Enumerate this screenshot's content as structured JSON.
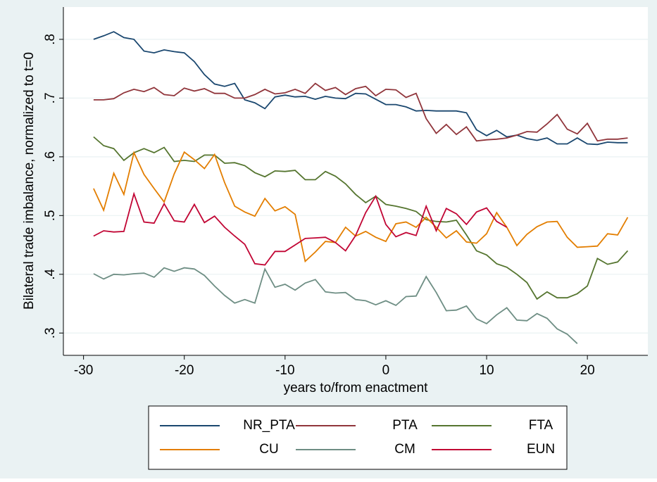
{
  "chart_data": {
    "type": "line",
    "y_label": "Bilateral trade imbalance, normalized to t=0",
    "x_label": "years to/from enactment",
    "x": [
      -29,
      -28,
      -27,
      -26,
      -25,
      -24,
      -23,
      -22,
      -21,
      -20,
      -19,
      -18,
      -17,
      -16,
      -15,
      -14,
      -13,
      -12,
      -11,
      -10,
      -9,
      -8,
      -7,
      -6,
      -5,
      -4,
      -3,
      -2,
      -1,
      0,
      1,
      2,
      3,
      4,
      5,
      6,
      7,
      8,
      9,
      10,
      11,
      12,
      13,
      14,
      15,
      16,
      17,
      18,
      19,
      20,
      21,
      22,
      23,
      24
    ],
    "series": [
      {
        "name": "NR_PTA",
        "color": "#1a476f",
        "values": [
          0.8,
          0.806,
          0.813,
          0.803,
          0.8,
          0.78,
          0.777,
          0.782,
          0.779,
          0.777,
          0.762,
          0.74,
          0.724,
          0.72,
          0.725,
          0.697,
          0.692,
          0.682,
          0.702,
          0.705,
          0.702,
          0.703,
          0.698,
          0.703,
          0.7,
          0.699,
          0.708,
          0.707,
          0.698,
          0.689,
          0.689,
          0.685,
          0.678,
          0.679,
          0.678,
          0.678,
          0.678,
          0.675,
          0.646,
          0.636,
          0.645,
          0.634,
          0.637,
          0.631,
          0.628,
          0.632,
          0.622,
          0.622,
          0.632,
          0.622,
          0.621,
          0.625,
          0.624,
          0.624
        ]
      },
      {
        "name": "PTA",
        "color": "#90353b",
        "values": [
          0.697,
          0.697,
          0.699,
          0.709,
          0.715,
          0.711,
          0.718,
          0.706,
          0.704,
          0.717,
          0.712,
          0.716,
          0.708,
          0.708,
          0.7,
          0.7,
          0.706,
          0.715,
          0.707,
          0.709,
          0.715,
          0.708,
          0.725,
          0.713,
          0.718,
          0.706,
          0.716,
          0.72,
          0.704,
          0.715,
          0.714,
          0.701,
          0.708,
          0.665,
          0.64,
          0.655,
          0.638,
          0.651,
          0.627,
          0.629,
          0.63,
          0.632,
          0.637,
          0.643,
          0.642,
          0.656,
          0.672,
          0.647,
          0.639,
          0.657,
          0.627,
          0.63,
          0.63,
          0.632
        ]
      },
      {
        "name": "FTA",
        "color": "#55752f",
        "values": [
          0.634,
          0.619,
          0.614,
          0.594,
          0.607,
          0.614,
          0.607,
          0.616,
          0.592,
          0.594,
          0.592,
          0.603,
          0.603,
          0.589,
          0.59,
          0.585,
          0.573,
          0.566,
          0.576,
          0.575,
          0.577,
          0.561,
          0.561,
          0.575,
          0.567,
          0.554,
          0.536,
          0.522,
          0.533,
          0.519,
          0.516,
          0.512,
          0.507,
          0.493,
          0.49,
          0.489,
          0.492,
          0.467,
          0.44,
          0.433,
          0.418,
          0.412,
          0.4,
          0.386,
          0.358,
          0.37,
          0.36,
          0.36,
          0.367,
          0.38,
          0.427,
          0.417,
          0.421,
          0.44
        ]
      },
      {
        "name": "CU",
        "color": "#e37e00",
        "values": [
          0.546,
          0.509,
          0.572,
          0.536,
          0.607,
          0.57,
          0.546,
          0.523,
          0.571,
          0.608,
          0.595,
          0.58,
          0.604,
          0.556,
          0.516,
          0.506,
          0.499,
          0.529,
          0.508,
          0.515,
          0.502,
          0.422,
          0.438,
          0.456,
          0.454,
          0.48,
          0.465,
          0.473,
          0.463,
          0.456,
          0.486,
          0.489,
          0.48,
          0.497,
          0.48,
          0.462,
          0.474,
          0.455,
          0.453,
          0.469,
          0.505,
          0.48,
          0.449,
          0.468,
          0.481,
          0.489,
          0.49,
          0.463,
          0.446,
          0.447,
          0.448,
          0.469,
          0.467,
          0.497
        ]
      },
      {
        "name": "CM",
        "color": "#6e8e84",
        "values": [
          0.401,
          0.392,
          0.4,
          0.399,
          0.401,
          0.402,
          0.395,
          0.411,
          0.405,
          0.411,
          0.409,
          0.398,
          0.38,
          0.364,
          0.351,
          0.357,
          0.351,
          0.409,
          0.378,
          0.383,
          0.373,
          0.385,
          0.391,
          0.37,
          0.368,
          0.369,
          0.357,
          0.355,
          0.348,
          0.355,
          0.347,
          0.362,
          0.363,
          0.396,
          0.369,
          0.338,
          0.339,
          0.346,
          0.324,
          0.316,
          0.331,
          0.343,
          0.322,
          0.321,
          0.333,
          0.325,
          0.307,
          0.298,
          0.282,
          null,
          null,
          null,
          null,
          null
        ]
      },
      {
        "name": "EUN",
        "color": "#c10534",
        "values": [
          0.465,
          0.474,
          0.472,
          0.473,
          0.537,
          0.489,
          0.487,
          0.52,
          0.491,
          0.489,
          0.519,
          0.488,
          0.499,
          0.48,
          0.465,
          0.451,
          0.418,
          0.416,
          0.439,
          0.439,
          0.45,
          0.461,
          0.462,
          0.463,
          0.454,
          0.44,
          0.466,
          0.505,
          0.533,
          0.485,
          0.464,
          0.471,
          0.466,
          0.516,
          0.474,
          0.512,
          0.503,
          0.485,
          0.506,
          0.513,
          0.49,
          0.48,
          null,
          null,
          null,
          null,
          null,
          null,
          null,
          null,
          null,
          null,
          null,
          null
        ]
      }
    ],
    "xlim": [
      -32,
      26
    ],
    "ylim": [
      0.262,
      0.855
    ],
    "xticks": [
      -30,
      -20,
      -10,
      0,
      10,
      20
    ],
    "yticks": [
      {
        "value": 0.3,
        "label": ".3"
      },
      {
        "value": 0.4,
        "label": ".4"
      },
      {
        "value": 0.5,
        "label": ".5"
      },
      {
        "value": 0.6,
        "label": ".6"
      },
      {
        "value": 0.7,
        "label": ".7"
      },
      {
        "value": 0.8,
        "label": ".8"
      }
    ],
    "grid": true
  }
}
